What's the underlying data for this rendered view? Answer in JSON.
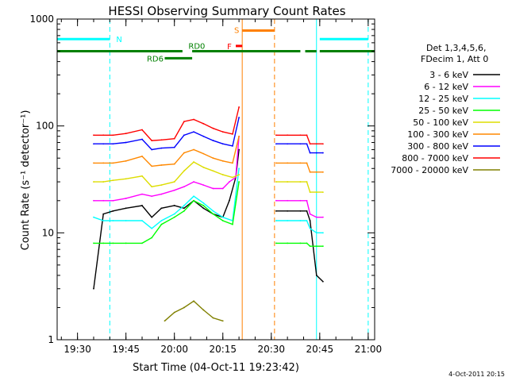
{
  "chart_data": {
    "type": "line",
    "title": "HESSI Observing Summary Count Rates",
    "xlabel": "Start Time (04-Oct-11 19:23:42)",
    "ylabel": "Count Rate (s⁻¹ detector⁻¹)",
    "x_range": [
      "19:23:42",
      "21:02:00"
    ],
    "x_ticks": [
      "19:30",
      "19:45",
      "20:00",
      "20:15",
      "20:30",
      "20:45",
      "21:00"
    ],
    "y_scale": "log",
    "y_range": [
      1,
      1000
    ],
    "y_ticks": [
      "1",
      "10",
      "100",
      "1000"
    ],
    "grid": false,
    "legend_position": "right",
    "legend_header": [
      "Det 1,3,4,5,6,",
      "FDecim 1, Att 0"
    ],
    "footer_date": "4-Oct-2011 20:15",
    "series": [
      {
        "name": "3 - 6 keV",
        "color": "#000000",
        "segments": [
          {
            "x": [
              "19:35:00",
              "19:38:00",
              "19:41:00",
              "19:45:00",
              "19:50:00",
              "19:53:00",
              "19:56:00",
              "20:00:00",
              "20:03:00",
              "20:06:00",
              "20:09:00",
              "20:12:00",
              "20:15:00",
              "20:17:00",
              "20:19:00",
              "20:20:00"
            ],
            "y": [
              3,
              15,
              16,
              17,
              18,
              14,
              17,
              18,
              17,
              20,
              17,
              15,
              14,
              20,
              33,
              60
            ]
          },
          {
            "x": [
              "20:31:30",
              "20:35:00",
              "20:39:00",
              "20:41:00",
              "20:42:00",
              "20:44:00",
              "20:46:00"
            ],
            "y": [
              16,
              16,
              16,
              16,
              13,
              4,
              3.5
            ]
          }
        ]
      },
      {
        "name": "6 - 12 keV",
        "color": "#ff00ff",
        "segments": [
          {
            "x": [
              "19:35:00",
              "19:38:00",
              "19:41:00",
              "19:45:00",
              "19:50:00",
              "19:53:00",
              "19:56:00",
              "20:00:00",
              "20:03:00",
              "20:06:00",
              "20:09:00",
              "20:12:00",
              "20:15:00",
              "20:17:00",
              "20:19:00",
              "20:20:00"
            ],
            "y": [
              20,
              20,
              20,
              21,
              23,
              22,
              23,
              25,
              27,
              30,
              28,
              26,
              26,
              30,
              33,
              80
            ]
          },
          {
            "x": [
              "20:31:30",
              "20:35:00",
              "20:39:00",
              "20:41:00",
              "20:42:00",
              "20:44:00",
              "20:46:00"
            ],
            "y": [
              20,
              20,
              20,
              20,
              15,
              14,
              14
            ]
          }
        ]
      },
      {
        "name": "12 - 25 keV",
        "color": "#00ffff",
        "segments": [
          {
            "x": [
              "19:35:00",
              "19:38:00",
              "19:41:00",
              "19:45:00",
              "19:50:00",
              "19:53:00",
              "19:56:00",
              "20:00:00",
              "20:03:00",
              "20:06:00",
              "20:09:00",
              "20:12:00",
              "20:15:00",
              "20:18:00",
              "20:20:00"
            ],
            "y": [
              14,
              13,
              13,
              13,
              13,
              11,
              13,
              15,
              18,
              22,
              19,
              16,
              14,
              13,
              40
            ]
          },
          {
            "x": [
              "20:31:30",
              "20:35:00",
              "20:39:00",
              "20:41:00",
              "20:42:00",
              "20:44:00",
              "20:46:00"
            ],
            "y": [
              13,
              13,
              13,
              13,
              11,
              10,
              10
            ]
          }
        ]
      },
      {
        "name": "25 - 50 keV",
        "color": "#00ff00",
        "segments": [
          {
            "x": [
              "19:35:00",
              "19:38:00",
              "19:41:00",
              "19:45:00",
              "19:50:00",
              "19:53:00",
              "19:56:00",
              "20:00:00",
              "20:03:00",
              "20:06:00",
              "20:09:00",
              "20:12:00",
              "20:15:00",
              "20:18:00",
              "20:20:00"
            ],
            "y": [
              8,
              8,
              8,
              8,
              8,
              9,
              12,
              14,
              16,
              20,
              18,
              15,
              13,
              12,
              30
            ]
          },
          {
            "x": [
              "20:31:30",
              "20:35:00",
              "20:39:00",
              "20:41:00",
              "20:42:00",
              "20:44:00",
              "20:46:00"
            ],
            "y": [
              8,
              8,
              8,
              8,
              7.5,
              7.5,
              7.5
            ]
          }
        ]
      },
      {
        "name": "50 - 100 keV",
        "color": "#dddd00",
        "segments": [
          {
            "x": [
              "19:35:00",
              "19:38:00",
              "19:41:00",
              "19:45:00",
              "19:50:00",
              "19:53:00",
              "19:56:00",
              "20:00:00",
              "20:03:00",
              "20:06:00",
              "20:09:00",
              "20:12:00",
              "20:15:00",
              "20:18:00",
              "20:20:00"
            ],
            "y": [
              30,
              30,
              31,
              32,
              34,
              27,
              28,
              30,
              38,
              46,
              41,
              38,
              35,
              33,
              35
            ]
          },
          {
            "x": [
              "20:31:30",
              "20:35:00",
              "20:39:00",
              "20:41:00",
              "20:42:00",
              "20:44:00",
              "20:46:00"
            ],
            "y": [
              30,
              30,
              30,
              30,
              24,
              24,
              24
            ]
          }
        ]
      },
      {
        "name": "100 - 300 keV",
        "color": "#ff8800",
        "segments": [
          {
            "x": [
              "19:35:00",
              "19:38:00",
              "19:41:00",
              "19:45:00",
              "19:50:00",
              "19:53:00",
              "19:56:00",
              "20:00:00",
              "20:03:00",
              "20:06:00",
              "20:09:00",
              "20:12:00",
              "20:15:00",
              "20:18:00",
              "20:20:00"
            ],
            "y": [
              45,
              45,
              45,
              47,
              52,
              42,
              43,
              44,
              56,
              60,
              55,
              50,
              47,
              45,
              80
            ]
          },
          {
            "x": [
              "20:31:30",
              "20:35:00",
              "20:39:00",
              "20:41:00",
              "20:42:00",
              "20:44:00",
              "20:46:00"
            ],
            "y": [
              45,
              45,
              45,
              45,
              37,
              37,
              37
            ]
          }
        ]
      },
      {
        "name": "300 - 800 keV",
        "color": "#0000ff",
        "segments": [
          {
            "x": [
              "19:35:00",
              "19:38:00",
              "19:41:00",
              "19:45:00",
              "19:50:00",
              "19:53:00",
              "19:56:00",
              "20:00:00",
              "20:03:00",
              "20:06:00",
              "20:09:00",
              "20:12:00",
              "20:15:00",
              "20:18:00",
              "20:20:00"
            ],
            "y": [
              68,
              68,
              68,
              70,
              75,
              60,
              62,
              63,
              82,
              88,
              80,
              73,
              68,
              65,
              120
            ]
          },
          {
            "x": [
              "20:31:30",
              "20:35:00",
              "20:39:00",
              "20:41:00",
              "20:42:00",
              "20:44:00",
              "20:46:00"
            ],
            "y": [
              68,
              68,
              68,
              68,
              56,
              56,
              56
            ]
          }
        ]
      },
      {
        "name": "800 - 7000 keV",
        "color": "#ff0000",
        "segments": [
          {
            "x": [
              "19:35:00",
              "19:38:00",
              "19:41:00",
              "19:45:00",
              "19:50:00",
              "19:53:00",
              "19:56:00",
              "20:00:00",
              "20:03:00",
              "20:06:00",
              "20:09:00",
              "20:12:00",
              "20:15:00",
              "20:18:00",
              "20:20:00"
            ],
            "y": [
              82,
              82,
              82,
              85,
              92,
              73,
              74,
              76,
              110,
              115,
              105,
              95,
              88,
              84,
              150
            ]
          },
          {
            "x": [
              "20:31:30",
              "20:35:00",
              "20:39:00",
              "20:41:00",
              "20:42:00",
              "20:44:00",
              "20:46:00"
            ],
            "y": [
              82,
              82,
              82,
              82,
              68,
              68,
              68
            ]
          }
        ]
      },
      {
        "name": "7000 - 20000 keV",
        "color": "#808000",
        "segments": [
          {
            "x": [
              "19:57:00",
              "20:00:00",
              "20:03:00",
              "20:06:00",
              "20:09:00",
              "20:12:00",
              "20:15:00"
            ],
            "y": [
              1.5,
              1.8,
              2.0,
              2.3,
              1.9,
              1.6,
              1.5
            ]
          }
        ]
      }
    ],
    "annotations": [
      {
        "label": "N",
        "color": "#00ffff",
        "y_level": 650,
        "spans": [
          [
            "19:23:42",
            "19:40:00"
          ],
          [
            "20:45:00",
            "21:00:00"
          ]
        ]
      },
      {
        "label": "RD0",
        "color": "#008000",
        "y_level": 500,
        "spans": [
          [
            "19:23:42",
            "20:02:30"
          ],
          [
            "20:05:30",
            "20:39:00"
          ],
          [
            "20:40:30",
            "20:44:00"
          ],
          [
            "20:45:00",
            "21:02:00"
          ]
        ]
      },
      {
        "label": "RD6",
        "color": "#008000",
        "y_level": 430,
        "spans": [
          [
            "19:57:00",
            "20:05:30"
          ]
        ]
      },
      {
        "label": "S",
        "color": "#ff8000",
        "y_level": 780,
        "spans": [
          [
            "20:21:00",
            "20:31:00"
          ]
        ]
      },
      {
        "label": "F",
        "color": "#ff0000",
        "y_level": 560,
        "spans": [
          [
            "20:19:00",
            "20:21:00"
          ]
        ]
      }
    ],
    "vertical_lines": [
      {
        "x": "19:40:00",
        "color": "#00ffff",
        "style": "dashed"
      },
      {
        "x": "20:44:00",
        "color": "#00ffff",
        "style": "solid"
      },
      {
        "x": "21:00:00",
        "color": "#00ffff",
        "style": "dashed"
      },
      {
        "x": "20:21:00",
        "color": "#ff8000",
        "style": "solid"
      },
      {
        "x": "20:31:00",
        "color": "#ff8000",
        "style": "dashed"
      }
    ]
  }
}
